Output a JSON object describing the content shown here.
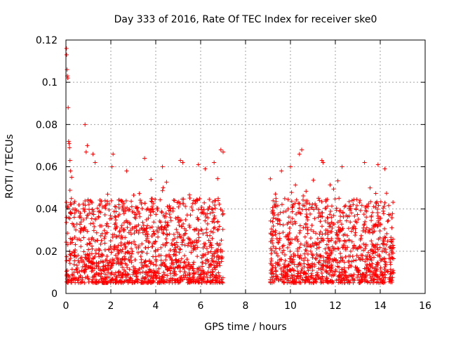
{
  "chart_data": {
    "type": "scatter",
    "title": "Day 333 of 2016, Rate Of TEC Index for receiver ske0",
    "xlabel": "GPS time / hours",
    "ylabel": "ROTI / TECUs",
    "xlim": [
      0,
      16
    ],
    "ylim": [
      0,
      0.12
    ],
    "grid": true,
    "x_ticks": [
      "0",
      "2",
      "4",
      "6",
      "8",
      "10",
      "12",
      "14",
      "16"
    ],
    "y_ticks": [
      "0",
      "0.02",
      "0.04",
      "0.06",
      "0.08",
      "0.1",
      "0.12"
    ],
    "series": [
      {
        "name": "ROTI",
        "marker": "+",
        "color": "#ff0000",
        "segments": [
          {
            "x_start": 0.0,
            "x_end": 7.0,
            "typical_min": 0.005,
            "typical_max": 0.045
          },
          {
            "x_start": 9.1,
            "x_end": 14.6,
            "typical_min": 0.005,
            "typical_max": 0.045
          }
        ],
        "notable_points": [
          {
            "x": 0.02,
            "y": 0.116
          },
          {
            "x": 0.03,
            "y": 0.113
          },
          {
            "x": 0.05,
            "y": 0.106
          },
          {
            "x": 0.06,
            "y": 0.103
          },
          {
            "x": 0.08,
            "y": 0.102
          },
          {
            "x": 0.1,
            "y": 0.088
          },
          {
            "x": 0.12,
            "y": 0.072
          },
          {
            "x": 0.14,
            "y": 0.071
          },
          {
            "x": 0.16,
            "y": 0.069
          },
          {
            "x": 0.18,
            "y": 0.063
          },
          {
            "x": 0.2,
            "y": 0.058
          },
          {
            "x": 0.25,
            "y": 0.055
          },
          {
            "x": 0.85,
            "y": 0.08
          },
          {
            "x": 0.95,
            "y": 0.07
          },
          {
            "x": 0.9,
            "y": 0.067
          },
          {
            "x": 1.2,
            "y": 0.066
          },
          {
            "x": 1.3,
            "y": 0.062
          },
          {
            "x": 2.1,
            "y": 0.066
          },
          {
            "x": 2.05,
            "y": 0.06
          },
          {
            "x": 2.7,
            "y": 0.058
          },
          {
            "x": 3.5,
            "y": 0.064
          },
          {
            "x": 4.3,
            "y": 0.06
          },
          {
            "x": 5.1,
            "y": 0.063
          },
          {
            "x": 5.2,
            "y": 0.062
          },
          {
            "x": 5.9,
            "y": 0.061
          },
          {
            "x": 6.2,
            "y": 0.059
          },
          {
            "x": 6.6,
            "y": 0.062
          },
          {
            "x": 6.9,
            "y": 0.068
          },
          {
            "x": 7.0,
            "y": 0.067
          },
          {
            "x": 9.6,
            "y": 0.058
          },
          {
            "x": 10.0,
            "y": 0.06
          },
          {
            "x": 10.4,
            "y": 0.066
          },
          {
            "x": 10.5,
            "y": 0.068
          },
          {
            "x": 11.4,
            "y": 0.063
          },
          {
            "x": 11.45,
            "y": 0.062
          },
          {
            "x": 12.3,
            "y": 0.06
          },
          {
            "x": 13.3,
            "y": 0.062
          },
          {
            "x": 13.9,
            "y": 0.061
          },
          {
            "x": 14.2,
            "y": 0.059
          }
        ]
      }
    ]
  }
}
